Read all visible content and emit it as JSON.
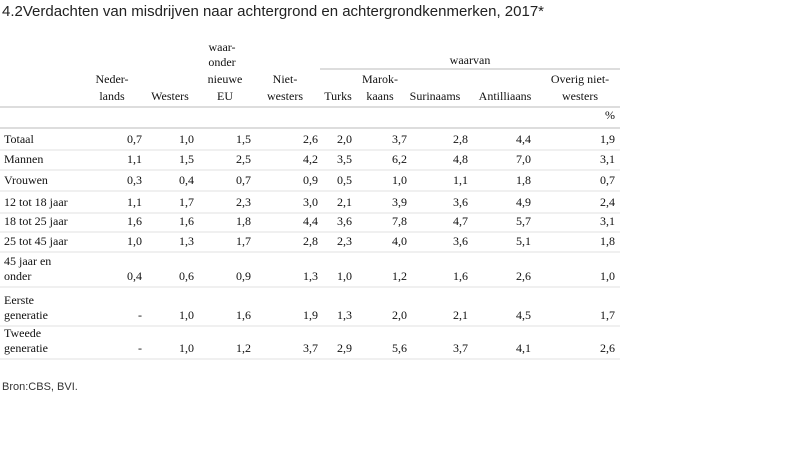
{
  "title": "4.2Verdachten van misdrijven naar achtergrond en achtergrondkenmerken, 2017*",
  "table": {
    "group_headers": [
      [
        "waar-",
        "onder"
      ],
      [
        "waarvan"
      ]
    ],
    "columns": [
      [
        "Neder-",
        "lands"
      ],
      [
        "Westers"
      ],
      [
        "nieuwe",
        "EU"
      ],
      [
        "Niet-",
        "westers"
      ],
      [
        "Turks"
      ],
      [
        "Marok-",
        "kaans"
      ],
      [
        "Surinaams"
      ],
      [
        "Antilliaans"
      ],
      [
        "Overig niet-",
        "westers"
      ]
    ],
    "unit": "%",
    "rows": [
      {
        "label": [
          "Totaal"
        ],
        "values": [
          "0,7",
          "1,0",
          "1,5",
          "2,6",
          "2,0",
          "3,7",
          "2,8",
          "4,4",
          "1,9"
        ]
      },
      {
        "label": [
          "Mannen"
        ],
        "values": [
          "1,1",
          "1,5",
          "2,5",
          "4,2",
          "3,5",
          "6,2",
          "4,8",
          "7,0",
          "3,1"
        ]
      },
      {
        "label": [
          "Vrouwen"
        ],
        "values": [
          "0,3",
          "0,4",
          "0,7",
          "0,9",
          "0,5",
          "1,0",
          "1,1",
          "1,8",
          "0,7"
        ]
      },
      {
        "label": [
          "12 tot 18 jaar"
        ],
        "values": [
          "1,1",
          "1,7",
          "2,3",
          "3,0",
          "2,1",
          "3,9",
          "3,6",
          "4,9",
          "2,4"
        ]
      },
      {
        "label": [
          "18 tot 25 jaar"
        ],
        "values": [
          "1,6",
          "1,6",
          "1,8",
          "4,4",
          "3,6",
          "7,8",
          "4,7",
          "5,7",
          "3,1"
        ]
      },
      {
        "label": [
          "25 tot 45 jaar"
        ],
        "values": [
          "1,0",
          "1,3",
          "1,7",
          "2,8",
          "2,3",
          "4,0",
          "3,6",
          "5,1",
          "1,8"
        ]
      },
      {
        "label": [
          "45 jaar en",
          "onder"
        ],
        "values": [
          "0,4",
          "0,6",
          "0,9",
          "1,3",
          "1,0",
          "1,2",
          "1,6",
          "2,6",
          "1,0"
        ]
      },
      {
        "label": [
          "Eerste",
          "generatie"
        ],
        "values": [
          "-",
          "1,0",
          "1,6",
          "1,9",
          "1,3",
          "2,0",
          "2,1",
          "4,5",
          "1,7"
        ]
      },
      {
        "label": [
          "Tweede",
          "generatie"
        ],
        "values": [
          "-",
          "1,0",
          "1,2",
          "3,7",
          "2,9",
          "5,6",
          "3,7",
          "4,1",
          "2,6"
        ]
      }
    ]
  },
  "source": "Bron:CBS, BVI."
}
